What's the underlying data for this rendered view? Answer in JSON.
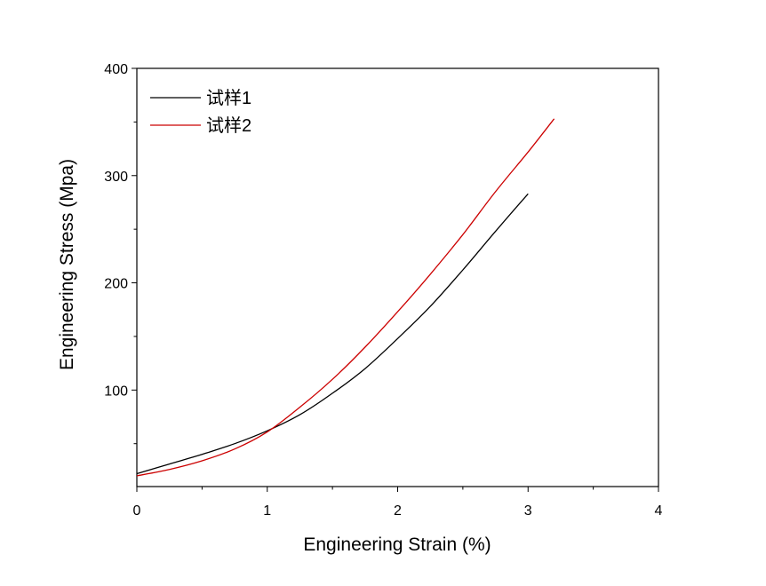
{
  "chart_data": {
    "type": "line",
    "xlabel": "Engineering Strain (%)",
    "ylabel": "Engineering Stress (Mpa)",
    "xlim": [
      0,
      4
    ],
    "ylim": [
      10,
      400
    ],
    "x_ticks": [
      0,
      1,
      2,
      3,
      4
    ],
    "x_tick_labels": [
      "0",
      "1",
      "2",
      "3",
      "4"
    ],
    "y_ticks": [
      100,
      200,
      300,
      400
    ],
    "y_tick_labels": [
      "100",
      "200",
      "300",
      "400"
    ],
    "grid": false,
    "legend_position": "top-left",
    "series": [
      {
        "name": "试样1",
        "color": "#000000",
        "x": [
          0,
          0.25,
          0.5,
          0.75,
          1.0,
          1.25,
          1.5,
          1.75,
          2.0,
          2.25,
          2.5,
          2.75,
          3.0
        ],
        "y": [
          22,
          31,
          40,
          50,
          62,
          77,
          97,
          120,
          148,
          178,
          212,
          248,
          283
        ]
      },
      {
        "name": "试样2",
        "color": "#cc0000",
        "x": [
          0,
          0.25,
          0.5,
          0.75,
          1.0,
          1.25,
          1.5,
          1.75,
          2.0,
          2.25,
          2.5,
          2.75,
          3.0,
          3.2
        ],
        "y": [
          20,
          26,
          34,
          45,
          61,
          84,
          110,
          140,
          173,
          208,
          245,
          285,
          322,
          353
        ]
      }
    ]
  }
}
